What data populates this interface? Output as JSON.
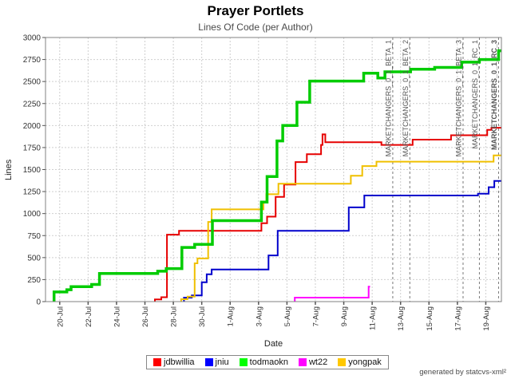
{
  "title": "Prayer Portlets",
  "subtitle": "Lines Of Code (per Author)",
  "footer": "generated by statcvs-xml²",
  "chart_data": {
    "type": "line",
    "title": "Prayer Portlets",
    "subtitle": "Lines Of Code (per Author)",
    "xlabel": "Date",
    "ylabel": "Lines",
    "ylim": [
      0,
      3000
    ],
    "y_ticks": [
      0,
      250,
      500,
      750,
      1000,
      1250,
      1500,
      1750,
      2000,
      2250,
      2500,
      2750,
      3000
    ],
    "x_unit": "days since 19-Jul",
    "x_domain_days": [
      0,
      32.1
    ],
    "x_ticks": [
      {
        "day": 1,
        "label": "20-Jul"
      },
      {
        "day": 3,
        "label": "22-Jul"
      },
      {
        "day": 5,
        "label": "24-Jul"
      },
      {
        "day": 7,
        "label": "26-Jul"
      },
      {
        "day": 9,
        "label": "28-Jul"
      },
      {
        "day": 11,
        "label": "30-Jul"
      },
      {
        "day": 13,
        "label": "1-Aug"
      },
      {
        "day": 15,
        "label": "3-Aug"
      },
      {
        "day": 17,
        "label": "5-Aug"
      },
      {
        "day": 19,
        "label": "7-Aug"
      },
      {
        "day": 21,
        "label": "9-Aug"
      },
      {
        "day": 23,
        "label": "11-Aug"
      },
      {
        "day": 25,
        "label": "13-Aug"
      },
      {
        "day": 27,
        "label": "15-Aug"
      },
      {
        "day": 29,
        "label": "17-Aug"
      },
      {
        "day": 31,
        "label": "19-Aug"
      }
    ],
    "grid": true,
    "legend_position": "bottom",
    "grid_color": "#cfcfcf",
    "border_color": "#808080",
    "annotation_color": "#787878",
    "tick_label_color": "#333333",
    "series": [
      {
        "name": "jdbwillia",
        "color": "#ff0000",
        "line_color": "#e60000",
        "line_width": 2,
        "points": [
          [
            7.7,
            25
          ],
          [
            8.15,
            50
          ],
          [
            8.55,
            760
          ],
          [
            9.4,
            805
          ],
          [
            15.2,
            890
          ],
          [
            15.6,
            965
          ],
          [
            16.2,
            1190
          ],
          [
            16.8,
            1330
          ],
          [
            17.6,
            1585
          ],
          [
            18.4,
            1675
          ],
          [
            19.4,
            1780
          ],
          [
            19.5,
            1900
          ],
          [
            19.7,
            1810
          ],
          [
            23.65,
            1780
          ],
          [
            25.85,
            1840
          ],
          [
            28.55,
            1890
          ],
          [
            31.1,
            1950
          ],
          [
            31.4,
            1975
          ]
        ],
        "end_day": 32.1
      },
      {
        "name": "jniu",
        "color": "#0000ff",
        "line_color": "#0000cc",
        "line_width": 2,
        "points": [
          [
            9.75,
            45
          ],
          [
            10.3,
            70
          ],
          [
            11.0,
            220
          ],
          [
            11.35,
            310
          ],
          [
            11.7,
            365
          ],
          [
            15.7,
            525
          ],
          [
            16.35,
            805
          ],
          [
            21.35,
            1070
          ],
          [
            22.45,
            1205
          ],
          [
            30.45,
            1225
          ],
          [
            31.2,
            1300
          ],
          [
            31.6,
            1370
          ]
        ],
        "end_day": 32.1
      },
      {
        "name": "todmaokn",
        "color": "#00ff00",
        "line_color": "#00cc00",
        "line_width": 3.5,
        "points": [
          [
            0.6,
            110
          ],
          [
            1.5,
            135
          ],
          [
            1.8,
            170
          ],
          [
            3.25,
            195
          ],
          [
            3.8,
            320
          ],
          [
            7.9,
            345
          ],
          [
            8.5,
            375
          ],
          [
            9.6,
            615
          ],
          [
            10.5,
            650
          ],
          [
            11.75,
            920
          ],
          [
            15.2,
            1130
          ],
          [
            15.6,
            1420
          ],
          [
            16.3,
            1825
          ],
          [
            16.7,
            2000
          ],
          [
            17.7,
            2265
          ],
          [
            18.6,
            2505
          ],
          [
            22.4,
            2595
          ],
          [
            23.4,
            2540
          ],
          [
            23.9,
            2610
          ],
          [
            25.7,
            2640
          ],
          [
            27.4,
            2660
          ],
          [
            29.3,
            2720
          ],
          [
            30.55,
            2750
          ],
          [
            31.9,
            2850
          ]
        ],
        "end_day": 32.1
      },
      {
        "name": "wt22",
        "color": "#ff00ff",
        "line_color": "#ff00ff",
        "line_width": 2,
        "points": [
          [
            17.55,
            45
          ],
          [
            22.75,
            170
          ]
        ],
        "end_day": 22.85
      },
      {
        "name": "yongpak",
        "color": "#ffc800",
        "line_color": "#f0c000",
        "line_width": 2,
        "points": [
          [
            9.55,
            27
          ],
          [
            10.0,
            57
          ],
          [
            10.5,
            435
          ],
          [
            10.7,
            490
          ],
          [
            11.45,
            905
          ],
          [
            11.7,
            1048
          ],
          [
            15.35,
            1130
          ],
          [
            15.55,
            1220
          ],
          [
            16.4,
            1340
          ],
          [
            21.5,
            1430
          ],
          [
            22.3,
            1540
          ],
          [
            23.3,
            1590
          ],
          [
            31.55,
            1660
          ]
        ],
        "end_day": 32.1
      }
    ],
    "annotations": [
      {
        "day": 24.45,
        "label": "MARKETCHANGERS_0_1_BETA_1",
        "bold": false
      },
      {
        "day": 25.65,
        "label": "MARKETCHANGERS_0_1_BETA_2",
        "bold": false
      },
      {
        "day": 29.4,
        "label": "MARKETCHANGERS_0_1_BETA_3",
        "bold": false
      },
      {
        "day": 30.55,
        "label": "MARKETCHANGERS_0_1_RC_1",
        "bold": false
      },
      {
        "day": 31.9,
        "label": "MARKETCHANGERS_0_1_RC_3",
        "bold": true
      }
    ]
  }
}
